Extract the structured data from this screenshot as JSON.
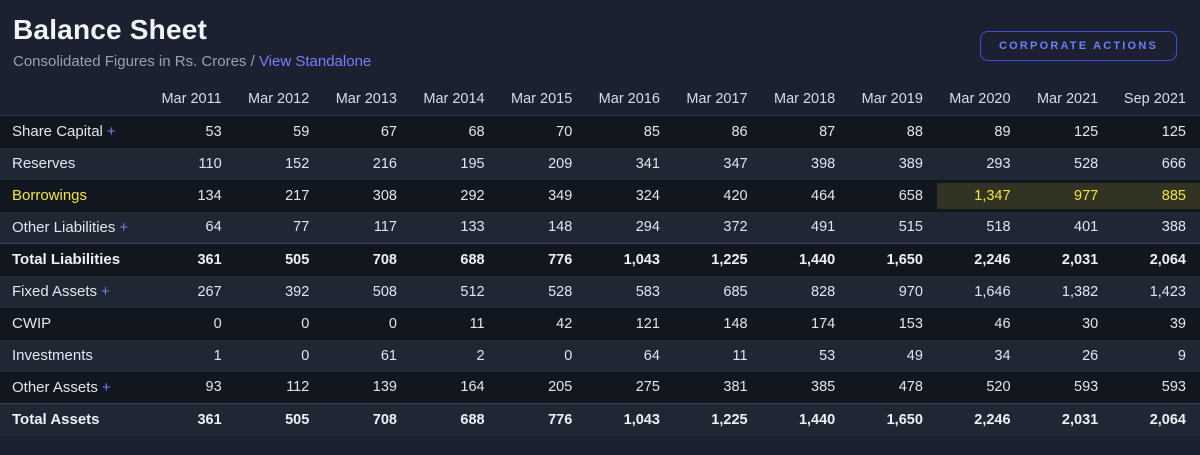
{
  "header": {
    "title": "Balance Sheet",
    "subtitle": "Consolidated Figures in Rs. Crores /",
    "standalone_link": "View Standalone",
    "corporate_actions_label": "CORPORATE ACTIONS"
  },
  "colors": {
    "background": "#1b2130",
    "row_dark": "#12161f",
    "row_light": "#1f2634",
    "accent_purple": "#7a7df7",
    "button_border": "#3f4ed8",
    "highlight_yellow": "#f2e63b",
    "highlight_band": "rgba(242,230,59,0.14)"
  },
  "table": {
    "columns": [
      "Mar 2011",
      "Mar 2012",
      "Mar 2013",
      "Mar 2014",
      "Mar 2015",
      "Mar 2016",
      "Mar 2017",
      "Mar 2018",
      "Mar 2019",
      "Mar 2020",
      "Mar 2021",
      "Sep 2021"
    ],
    "rows": [
      {
        "label": "Share Capital",
        "suffix": "+",
        "bold": false,
        "yellow": false,
        "highlight_cols": [],
        "values": [
          "53",
          "59",
          "67",
          "68",
          "70",
          "85",
          "86",
          "87",
          "88",
          "89",
          "125",
          "125"
        ]
      },
      {
        "label": "Reserves",
        "suffix": "",
        "bold": false,
        "yellow": false,
        "highlight_cols": [],
        "values": [
          "110",
          "152",
          "216",
          "195",
          "209",
          "341",
          "347",
          "398",
          "389",
          "293",
          "528",
          "666"
        ]
      },
      {
        "label": "Borrowings",
        "suffix": "",
        "bold": false,
        "yellow": true,
        "highlight_cols": [
          9,
          10,
          11
        ],
        "values": [
          "134",
          "217",
          "308",
          "292",
          "349",
          "324",
          "420",
          "464",
          "658",
          "1,347",
          "977",
          "885"
        ]
      },
      {
        "label": "Other Liabilities",
        "suffix": "+",
        "bold": false,
        "yellow": false,
        "highlight_cols": [],
        "values": [
          "64",
          "77",
          "117",
          "133",
          "148",
          "294",
          "372",
          "491",
          "515",
          "518",
          "401",
          "388"
        ]
      },
      {
        "label": "Total Liabilities",
        "suffix": "",
        "bold": true,
        "yellow": false,
        "highlight_cols": [],
        "values": [
          "361",
          "505",
          "708",
          "688",
          "776",
          "1,043",
          "1,225",
          "1,440",
          "1,650",
          "2,246",
          "2,031",
          "2,064"
        ]
      },
      {
        "label": "Fixed Assets",
        "suffix": "+",
        "bold": false,
        "yellow": false,
        "highlight_cols": [],
        "values": [
          "267",
          "392",
          "508",
          "512",
          "528",
          "583",
          "685",
          "828",
          "970",
          "1,646",
          "1,382",
          "1,423"
        ]
      },
      {
        "label": "CWIP",
        "suffix": "",
        "bold": false,
        "yellow": false,
        "highlight_cols": [],
        "values": [
          "0",
          "0",
          "0",
          "11",
          "42",
          "121",
          "148",
          "174",
          "153",
          "46",
          "30",
          "39"
        ]
      },
      {
        "label": "Investments",
        "suffix": "",
        "bold": false,
        "yellow": false,
        "highlight_cols": [],
        "values": [
          "1",
          "0",
          "61",
          "2",
          "0",
          "64",
          "11",
          "53",
          "49",
          "34",
          "26",
          "9"
        ]
      },
      {
        "label": "Other Assets",
        "suffix": "+",
        "bold": false,
        "yellow": false,
        "highlight_cols": [],
        "values": [
          "93",
          "112",
          "139",
          "164",
          "205",
          "275",
          "381",
          "385",
          "478",
          "520",
          "593",
          "593"
        ]
      },
      {
        "label": "Total Assets",
        "suffix": "",
        "bold": true,
        "yellow": false,
        "highlight_cols": [],
        "values": [
          "361",
          "505",
          "708",
          "688",
          "776",
          "1,043",
          "1,225",
          "1,440",
          "1,650",
          "2,246",
          "2,031",
          "2,064"
        ]
      }
    ]
  }
}
